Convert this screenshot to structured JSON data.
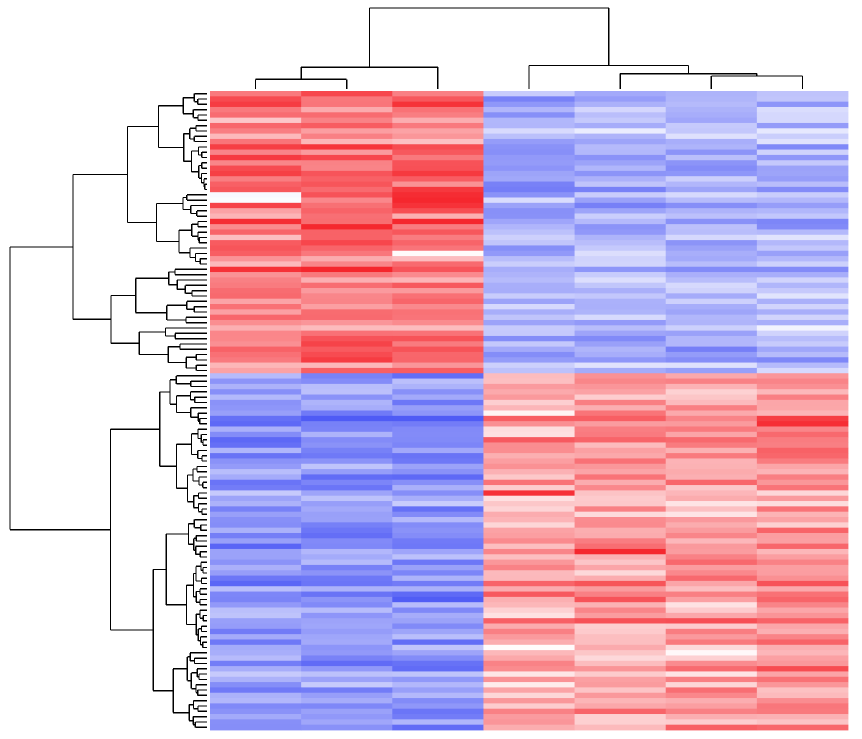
{
  "chart_data": {
    "type": "heatmap",
    "title": "",
    "xlabel": "",
    "ylabel": "",
    "columns": 7,
    "rows": 120,
    "row_split": 53,
    "column_split": 3,
    "color_scale": {
      "low": "#4f5bf5",
      "mid": "#ffffff",
      "high": "#f5232a"
    },
    "value_range": [
      -1,
      1
    ],
    "column_groups": [
      {
        "columns": [
          0,
          1,
          2
        ],
        "upper_block_mean": [
          0.58,
          0.66,
          0.62
        ],
        "lower_block_mean": [
          -0.6,
          -0.64,
          -0.66
        ]
      },
      {
        "columns": [
          3,
          4,
          5,
          6
        ],
        "upper_block_mean": [
          -0.52,
          -0.48,
          -0.46,
          -0.44
        ],
        "lower_block_mean": [
          0.4,
          0.44,
          0.48,
          0.5
        ]
      }
    ],
    "notable_cells": [
      {
        "row": 19,
        "col": 0,
        "value": -0.04
      },
      {
        "row": 20,
        "col": 0,
        "value": -0.02
      },
      {
        "row": 19,
        "col": 2,
        "value": 0.96
      },
      {
        "row": 20,
        "col": 2,
        "value": 0.98
      },
      {
        "row": 30,
        "col": 2,
        "value": 0.02
      },
      {
        "row": 30,
        "col": 4,
        "value": -0.2
      },
      {
        "row": 60,
        "col": 3,
        "value": 0.05
      },
      {
        "row": 62,
        "col": 6,
        "value": 0.95
      },
      {
        "row": 75,
        "col": 3,
        "value": 0.94
      },
      {
        "row": 86,
        "col": 4,
        "value": 0.98
      },
      {
        "row": 105,
        "col": 5,
        "value": 0.03
      }
    ],
    "legend": "none",
    "grid": false
  }
}
